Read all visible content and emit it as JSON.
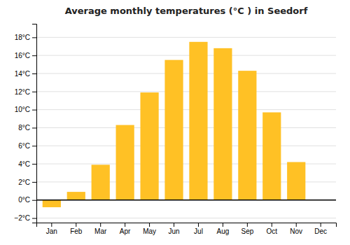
{
  "chart_data": {
    "type": "bar",
    "title": "Average monthly temperatures (°C ) in Seedorf",
    "categories": [
      "Jan",
      "Feb",
      "Mar",
      "Apr",
      "May",
      "Jun",
      "Jul",
      "Aug",
      "Sep",
      "Oct",
      "Nov",
      "Dec"
    ],
    "values": [
      -0.8,
      0.9,
      3.9,
      8.3,
      11.9,
      15.5,
      17.5,
      16.8,
      14.3,
      9.7,
      4.2,
      0.0
    ],
    "color": "#FFC125",
    "ylim": [
      -2.5,
      19.5
    ],
    "yticks": [
      {
        "value": -2,
        "label": "−2°C"
      },
      {
        "value": 0,
        "label": "0°C"
      },
      {
        "value": 2,
        "label": "2°C"
      },
      {
        "value": 4,
        "label": "4°C"
      },
      {
        "value": 6,
        "label": "6°C"
      },
      {
        "value": 8,
        "label": "8°C"
      },
      {
        "value": 10,
        "label": "10°C"
      },
      {
        "value": 12,
        "label": "12°C"
      },
      {
        "value": 14,
        "label": "14°C"
      },
      {
        "value": 16,
        "label": "16°C"
      },
      {
        "value": 18,
        "label": "18°C"
      }
    ],
    "grid": true
  }
}
